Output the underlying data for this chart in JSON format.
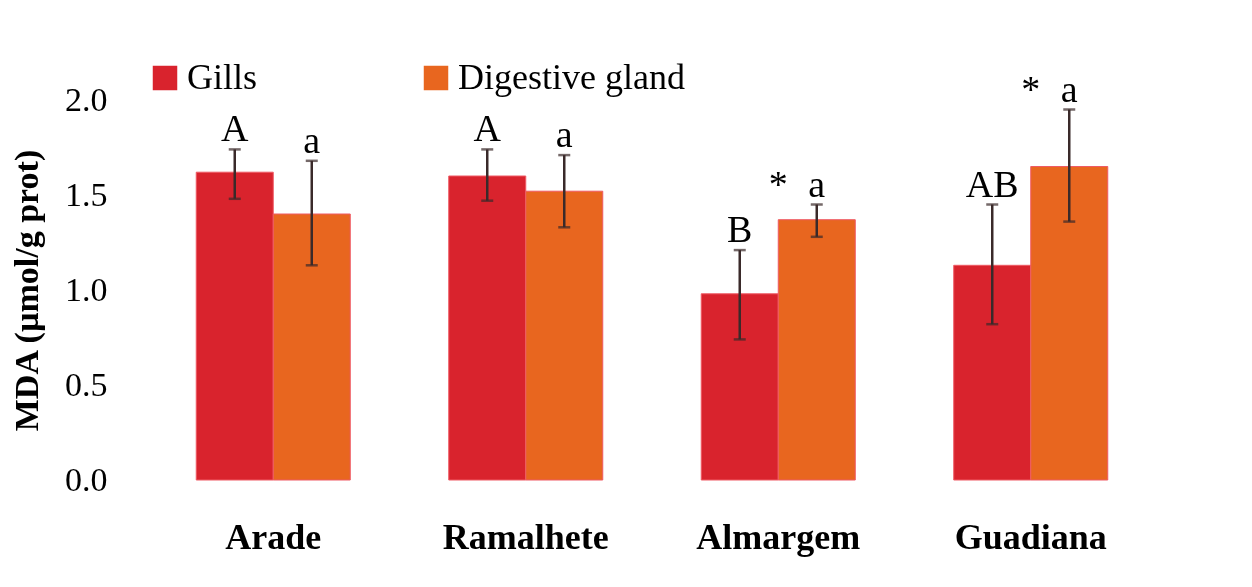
{
  "chart_data": {
    "type": "bar",
    "ylabel": "MDA (µmol/g prot)",
    "categories": [
      "Arade",
      "Ramalhete",
      "Almargem",
      "Guadiana"
    ],
    "series": [
      {
        "name": "Gills",
        "color": "#d9232d",
        "values": [
          1.62,
          1.6,
          0.98,
          1.13
        ],
        "value_labels": [
          "A",
          "A",
          "B",
          "AB"
        ],
        "errors": [
          [
            1.48,
            1.74
          ],
          [
            1.47,
            1.74
          ],
          [
            0.74,
            1.21
          ],
          [
            0.82,
            1.45
          ]
        ]
      },
      {
        "name": "Digestive gland",
        "color": "#e8661f",
        "values": [
          1.4,
          1.52,
          1.37,
          1.65
        ],
        "value_labels": [
          "a",
          "a",
          "a",
          "a"
        ],
        "errors": [
          [
            1.13,
            1.68
          ],
          [
            1.33,
            1.71
          ],
          [
            1.28,
            1.45
          ],
          [
            1.36,
            1.95
          ]
        ]
      }
    ],
    "ylim": [
      0,
      2.0
    ],
    "yticks": [
      {
        "value": 0,
        "label": "0.0"
      },
      {
        "value": 0.5,
        "label": "0.5"
      },
      {
        "value": 1,
        "label": "1.0"
      },
      {
        "value": 1.5,
        "label": "1.5"
      },
      {
        "value": 2,
        "label": "2.0"
      }
    ],
    "legend": "top",
    "grid": false,
    "annotations": [
      "*",
      "*"
    ]
  }
}
